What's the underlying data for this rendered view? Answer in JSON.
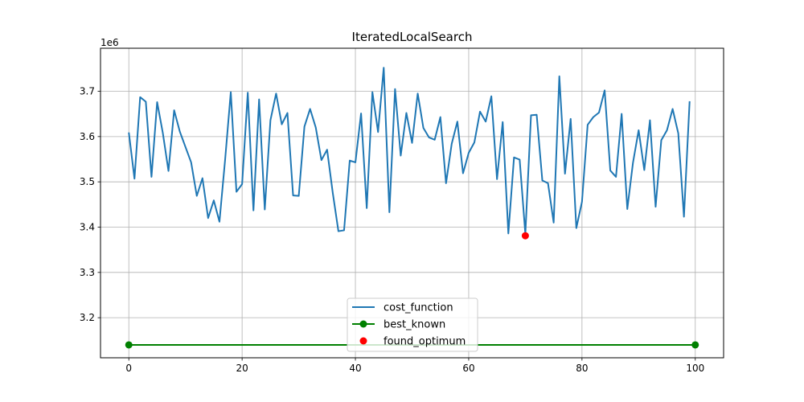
{
  "chart_data": {
    "type": "line",
    "title": "IteratedLocalSearch",
    "xlabel": "",
    "ylabel": "",
    "y_scale_label": "1e6",
    "xlim": [
      -5,
      105
    ],
    "ylim": [
      3.1115,
      3.795
    ],
    "x_ticks": [
      0,
      20,
      40,
      60,
      80,
      100
    ],
    "y_ticks": [
      3.2,
      3.3,
      3.4,
      3.5,
      3.6,
      3.7
    ],
    "x_tick_labels": [
      "0",
      "20",
      "40",
      "60",
      "80",
      "100"
    ],
    "y_tick_labels": [
      "3.2",
      "3.3",
      "3.4",
      "3.5",
      "3.6",
      "3.7"
    ],
    "grid": true,
    "legend_position": "lower center",
    "series": [
      {
        "name": "cost_function",
        "style": "line",
        "color": "#1f77b4",
        "x": [
          0,
          1,
          2,
          3,
          4,
          5,
          6,
          7,
          8,
          9,
          10,
          11,
          12,
          13,
          14,
          15,
          16,
          17,
          18,
          19,
          20,
          21,
          22,
          23,
          24,
          25,
          26,
          27,
          28,
          29,
          30,
          31,
          32,
          33,
          34,
          35,
          36,
          37,
          38,
          39,
          40,
          41,
          42,
          43,
          44,
          45,
          46,
          47,
          48,
          49,
          50,
          51,
          52,
          53,
          54,
          55,
          56,
          57,
          58,
          59,
          60,
          61,
          62,
          63,
          64,
          65,
          66,
          67,
          68,
          69,
          70,
          71,
          72,
          73,
          74,
          75,
          76,
          77,
          78,
          79,
          80,
          81,
          82,
          83,
          84,
          85,
          86,
          87,
          88,
          89,
          90,
          91,
          92,
          93,
          94,
          95,
          96,
          97,
          98,
          99
        ],
        "y": [
          3.609,
          3.507,
          3.687,
          3.677,
          3.511,
          3.676,
          3.608,
          3.524,
          3.658,
          3.611,
          3.577,
          3.543,
          3.469,
          3.508,
          3.42,
          3.459,
          3.412,
          3.549,
          3.698,
          3.478,
          3.495,
          3.697,
          3.437,
          3.682,
          3.439,
          3.636,
          3.695,
          3.627,
          3.652,
          3.47,
          3.469,
          3.622,
          3.661,
          3.62,
          3.548,
          3.571,
          3.476,
          3.391,
          3.393,
          3.547,
          3.543,
          3.651,
          3.442,
          3.698,
          3.61,
          3.752,
          3.433,
          3.705,
          3.558,
          3.652,
          3.586,
          3.695,
          3.619,
          3.598,
          3.593,
          3.643,
          3.497,
          3.584,
          3.633,
          3.519,
          3.564,
          3.587,
          3.655,
          3.633,
          3.689,
          3.506,
          3.632,
          3.386,
          3.554,
          3.549,
          3.385,
          3.647,
          3.648,
          3.503,
          3.497,
          3.41,
          3.733,
          3.518,
          3.639,
          3.398,
          3.456,
          3.626,
          3.643,
          3.653,
          3.702,
          3.525,
          3.511,
          3.65,
          3.44,
          3.542,
          3.614,
          3.526,
          3.636,
          3.445,
          3.592,
          3.614,
          3.661,
          3.607,
          3.423,
          3.678
        ]
      },
      {
        "name": "best_known",
        "style": "line-marker",
        "color": "#008000",
        "x": [
          0,
          100
        ],
        "y": [
          3.14,
          3.14
        ]
      },
      {
        "name": "found_optimum",
        "style": "marker",
        "color": "#ff0000",
        "x": [
          70
        ],
        "y": [
          3.381
        ]
      }
    ]
  }
}
